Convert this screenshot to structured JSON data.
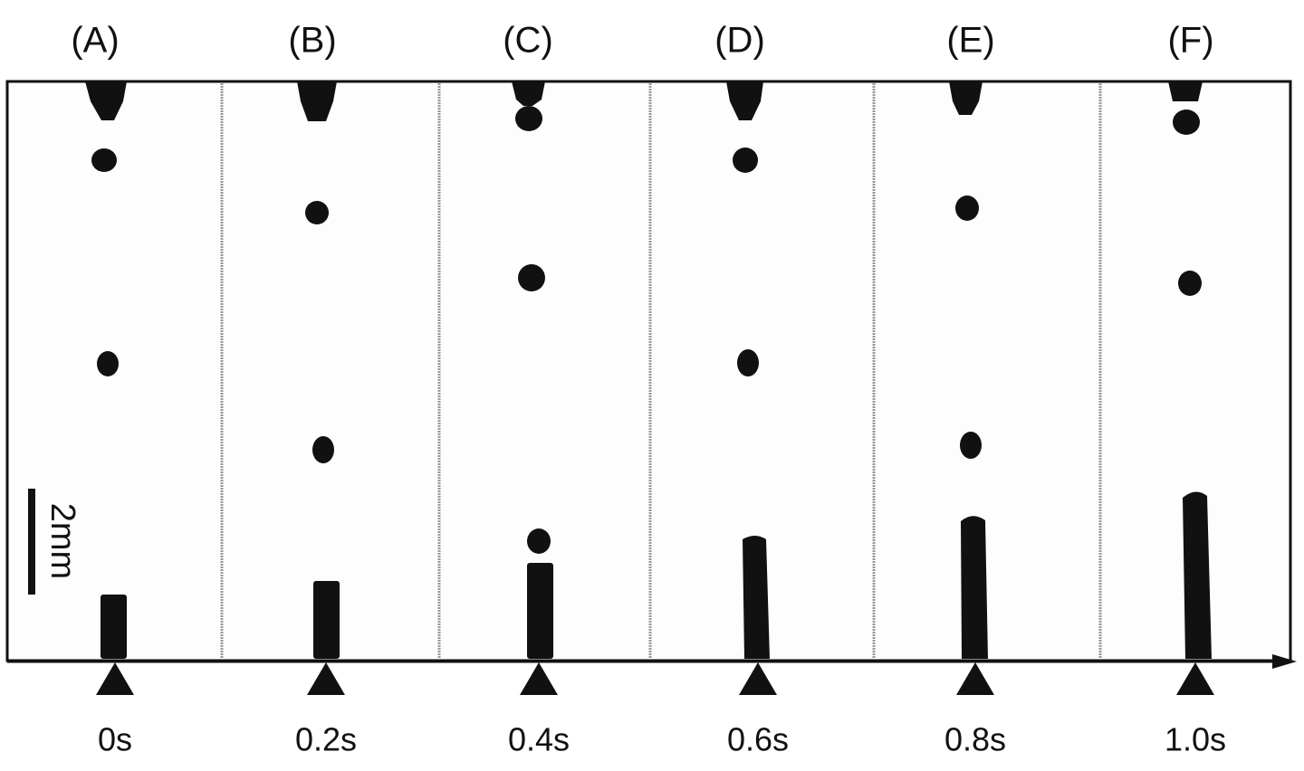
{
  "panels": [
    {
      "label": "(A)",
      "time": "0s"
    },
    {
      "label": "(B)",
      "time": "0.2s"
    },
    {
      "label": "(C)",
      "time": "0.4s"
    },
    {
      "label": "(D)",
      "time": "0.6s"
    },
    {
      "label": "(E)",
      "time": "0.8s"
    },
    {
      "label": "(F)",
      "time": "1.0s"
    }
  ],
  "scale_bar": "2mm"
}
